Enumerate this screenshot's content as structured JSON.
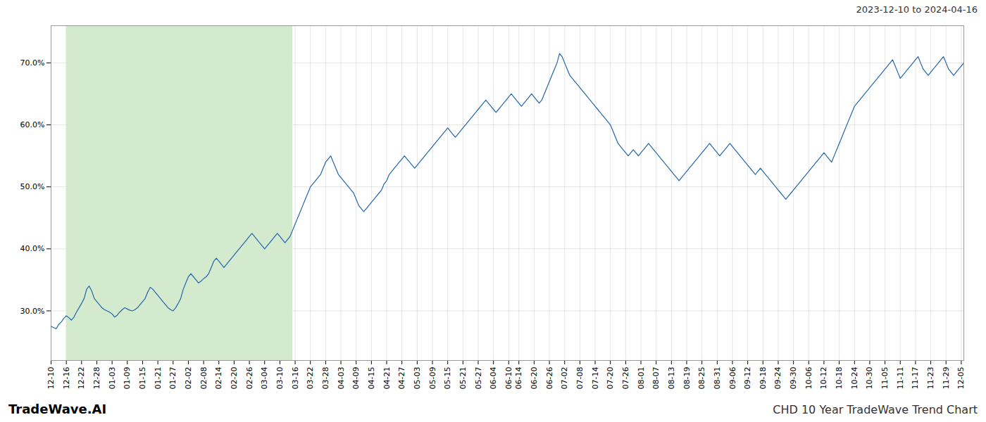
{
  "chart_data": {
    "type": "line",
    "title": "CHD 10 Year TradeWave Trend Chart",
    "subtitle": "2023-12-10 to 2024-04-16",
    "annotations": [
      "TradeWave.AI"
    ],
    "color": "#2266aa",
    "grid": true,
    "shaded_region": {
      "x": [
        6,
        95
      ],
      "color": "#d4eacf"
    },
    "xlim": [
      0,
      359
    ],
    "ylim": [
      22,
      76
    ],
    "yticks": [
      {
        "value": 30.0,
        "label": "30.0%"
      },
      {
        "value": 40.0,
        "label": "40.0%"
      },
      {
        "value": 50.0,
        "label": "50.0%"
      },
      {
        "value": 60.0,
        "label": "60.0%"
      },
      {
        "value": 70.0,
        "label": "70.0%"
      }
    ],
    "xticks": [
      {
        "value": 0,
        "label": "12-10"
      },
      {
        "value": 6,
        "label": "12-16"
      },
      {
        "value": 12,
        "label": "12-22"
      },
      {
        "value": 18,
        "label": "12-28"
      },
      {
        "value": 24,
        "label": "01-03"
      },
      {
        "value": 30,
        "label": "01-09"
      },
      {
        "value": 36,
        "label": "01-15"
      },
      {
        "value": 42,
        "label": "01-21"
      },
      {
        "value": 48,
        "label": "01-27"
      },
      {
        "value": 54,
        "label": "02-02"
      },
      {
        "value": 60,
        "label": "02-08"
      },
      {
        "value": 66,
        "label": "02-14"
      },
      {
        "value": 72,
        "label": "02-20"
      },
      {
        "value": 78,
        "label": "02-26"
      },
      {
        "value": 84,
        "label": "03-04"
      },
      {
        "value": 90,
        "label": "03-10"
      },
      {
        "value": 96,
        "label": "03-16"
      },
      {
        "value": 102,
        "label": "03-22"
      },
      {
        "value": 108,
        "label": "03-28"
      },
      {
        "value": 114,
        "label": "04-03"
      },
      {
        "value": 120,
        "label": "04-09"
      },
      {
        "value": 126,
        "label": "04-15"
      },
      {
        "value": 132,
        "label": "04-21"
      },
      {
        "value": 138,
        "label": "04-27"
      },
      {
        "value": 144,
        "label": "05-03"
      },
      {
        "value": 150,
        "label": "05-09"
      },
      {
        "value": 156,
        "label": "05-15"
      },
      {
        "value": 162,
        "label": "05-21"
      },
      {
        "value": 168,
        "label": "05-27"
      },
      {
        "value": 174,
        "label": "06-04"
      },
      {
        "value": 180,
        "label": "06-10"
      },
      {
        "value": 184,
        "label": "06-14"
      },
      {
        "value": 190,
        "label": "06-20"
      },
      {
        "value": 196,
        "label": "06-26"
      },
      {
        "value": 202,
        "label": "07-02"
      },
      {
        "value": 208,
        "label": "07-08"
      },
      {
        "value": 214,
        "label": "07-14"
      },
      {
        "value": 220,
        "label": "07-20"
      },
      {
        "value": 226,
        "label": "07-26"
      },
      {
        "value": 232,
        "label": "08-01"
      },
      {
        "value": 238,
        "label": "08-07"
      },
      {
        "value": 244,
        "label": "08-13"
      },
      {
        "value": 250,
        "label": "08-19"
      },
      {
        "value": 256,
        "label": "08-25"
      },
      {
        "value": 262,
        "label": "08-31"
      },
      {
        "value": 268,
        "label": "09-06"
      },
      {
        "value": 274,
        "label": "09-12"
      },
      {
        "value": 280,
        "label": "09-18"
      },
      {
        "value": 286,
        "label": "09-24"
      },
      {
        "value": 292,
        "label": "09-30"
      },
      {
        "value": 298,
        "label": "10-06"
      },
      {
        "value": 304,
        "label": "10-12"
      },
      {
        "value": 310,
        "label": "10-18"
      },
      {
        "value": 316,
        "label": "10-24"
      },
      {
        "value": 322,
        "label": "10-30"
      },
      {
        "value": 328,
        "label": "11-05"
      },
      {
        "value": 334,
        "label": "11-11"
      },
      {
        "value": 340,
        "label": "11-17"
      },
      {
        "value": 346,
        "label": "11-23"
      },
      {
        "value": 352,
        "label": "11-29"
      },
      {
        "value": 358,
        "label": "12-05"
      }
    ],
    "x": [
      0,
      1,
      2,
      3,
      4,
      5,
      6,
      7,
      8,
      9,
      10,
      11,
      12,
      13,
      14,
      15,
      16,
      17,
      18,
      19,
      20,
      21,
      22,
      23,
      24,
      25,
      26,
      27,
      28,
      29,
      30,
      31,
      32,
      33,
      34,
      35,
      36,
      37,
      38,
      39,
      40,
      41,
      42,
      43,
      44,
      45,
      46,
      47,
      48,
      49,
      50,
      51,
      52,
      53,
      54,
      55,
      56,
      57,
      58,
      59,
      60,
      61,
      62,
      63,
      64,
      65,
      66,
      67,
      68,
      69,
      70,
      71,
      72,
      73,
      74,
      75,
      76,
      77,
      78,
      79,
      80,
      81,
      82,
      83,
      84,
      85,
      86,
      87,
      88,
      89,
      90,
      91,
      92,
      93,
      94,
      95,
      96,
      97,
      98,
      99,
      100,
      101,
      102,
      103,
      104,
      105,
      106,
      107,
      108,
      109,
      110,
      111,
      112,
      113,
      114,
      115,
      116,
      117,
      118,
      119,
      120,
      121,
      122,
      123,
      124,
      125,
      126,
      127,
      128,
      129,
      130,
      131,
      132,
      133,
      134,
      135,
      136,
      137,
      138,
      139,
      140,
      141,
      142,
      143,
      144,
      145,
      146,
      147,
      148,
      149,
      150,
      151,
      152,
      153,
      154,
      155,
      156,
      157,
      158,
      159,
      160,
      161,
      162,
      163,
      164,
      165,
      166,
      167,
      168,
      169,
      170,
      171,
      172,
      173,
      174,
      175,
      176,
      177,
      178,
      179,
      180,
      181,
      182,
      183,
      184,
      185,
      186,
      187,
      188,
      189,
      190,
      191,
      192,
      193,
      194,
      195,
      196,
      197,
      198,
      199,
      200,
      201,
      202,
      203,
      204,
      205,
      206,
      207,
      208,
      209,
      210,
      211,
      212,
      213,
      214,
      215,
      216,
      217,
      218,
      219,
      220,
      221,
      222,
      223,
      224,
      225,
      226,
      227,
      228,
      229,
      230,
      231,
      232,
      233,
      234,
      235,
      236,
      237,
      238,
      239,
      240,
      241,
      242,
      243,
      244,
      245,
      246,
      247,
      248,
      249,
      250,
      251,
      252,
      253,
      254,
      255,
      256,
      257,
      258,
      259,
      260,
      261,
      262,
      263,
      264,
      265,
      266,
      267,
      268,
      269,
      270,
      271,
      272,
      273,
      274,
      275,
      276,
      277,
      278,
      279,
      280,
      281,
      282,
      283,
      284,
      285,
      286,
      287,
      288,
      289,
      290,
      291,
      292,
      293,
      294,
      295,
      296,
      297,
      298,
      299,
      300,
      301,
      302,
      303,
      304,
      305,
      306,
      307,
      308,
      309,
      310,
      311,
      312,
      313,
      314,
      315,
      316,
      317,
      318,
      319,
      320,
      321,
      322,
      323,
      324,
      325,
      326,
      327,
      328,
      329,
      330,
      331,
      332,
      333,
      334,
      335,
      336,
      337,
      338,
      339,
      340,
      341,
      342,
      343,
      344,
      345,
      346,
      347,
      348,
      349,
      350,
      351,
      352,
      353,
      354,
      355,
      356,
      357,
      358,
      359
    ],
    "values": [
      27.5,
      27.3,
      27.1,
      27.8,
      28.2,
      28.8,
      29.2,
      28.9,
      28.5,
      29.0,
      29.8,
      30.5,
      31.2,
      32.0,
      33.5,
      34.0,
      33.2,
      32.0,
      31.5,
      31.0,
      30.5,
      30.2,
      30.0,
      29.8,
      29.5,
      29.0,
      29.3,
      29.8,
      30.2,
      30.5,
      30.3,
      30.1,
      30.0,
      30.2,
      30.5,
      31.0,
      31.5,
      32.0,
      33.0,
      33.8,
      33.5,
      33.0,
      32.5,
      32.0,
      31.5,
      31.0,
      30.5,
      30.2,
      30.0,
      30.5,
      31.2,
      32.0,
      33.5,
      34.5,
      35.5,
      36.0,
      35.5,
      35.0,
      34.5,
      34.8,
      35.2,
      35.5,
      36.0,
      37.0,
      38.0,
      38.5,
      38.0,
      37.5,
      37.0,
      37.5,
      38.0,
      38.5,
      39.0,
      39.5,
      40.0,
      40.5,
      41.0,
      41.5,
      42.0,
      42.5,
      42.0,
      41.5,
      41.0,
      40.5,
      40.0,
      40.5,
      41.0,
      41.5,
      42.0,
      42.5,
      42.0,
      41.5,
      41.0,
      41.5,
      42.0,
      43.0,
      44.0,
      45.0,
      46.0,
      47.0,
      48.0,
      49.0,
      50.0,
      50.5,
      51.0,
      51.5,
      52.0,
      53.0,
      54.0,
      54.5,
      55.0,
      54.0,
      53.0,
      52.0,
      51.5,
      51.0,
      50.5,
      50.0,
      49.5,
      49.0,
      48.0,
      47.0,
      46.5,
      46.0,
      46.5,
      47.0,
      47.5,
      48.0,
      48.5,
      49.0,
      49.5,
      50.5,
      51.0,
      52.0,
      52.5,
      53.0,
      53.5,
      54.0,
      54.5,
      55.0,
      54.5,
      54.0,
      53.5,
      53.0,
      53.5,
      54.0,
      54.5,
      55.0,
      55.5,
      56.0,
      56.5,
      57.0,
      57.5,
      58.0,
      58.5,
      59.0,
      59.5,
      59.0,
      58.5,
      58.0,
      58.5,
      59.0,
      59.5,
      60.0,
      60.5,
      61.0,
      61.5,
      62.0,
      62.5,
      63.0,
      63.5,
      64.0,
      63.5,
      63.0,
      62.5,
      62.0,
      62.5,
      63.0,
      63.5,
      64.0,
      64.5,
      65.0,
      64.5,
      64.0,
      63.5,
      63.0,
      63.5,
      64.0,
      64.5,
      65.0,
      64.5,
      64.0,
      63.5,
      64.0,
      65.0,
      66.0,
      67.0,
      68.0,
      69.0,
      70.0,
      71.5,
      71.0,
      70.0,
      69.0,
      68.0,
      67.5,
      67.0,
      66.5,
      66.0,
      65.5,
      65.0,
      64.5,
      64.0,
      63.5,
      63.0,
      62.5,
      62.0,
      61.5,
      61.0,
      60.5,
      60.0,
      59.0,
      58.0,
      57.0,
      56.5,
      56.0,
      55.5,
      55.0,
      55.5,
      56.0,
      55.5,
      55.0,
      55.5,
      56.0,
      56.5,
      57.0,
      56.5,
      56.0,
      55.5,
      55.0,
      54.5,
      54.0,
      53.5,
      53.0,
      52.5,
      52.0,
      51.5,
      51.0,
      51.5,
      52.0,
      52.5,
      53.0,
      53.5,
      54.0,
      54.5,
      55.0,
      55.5,
      56.0,
      56.5,
      57.0,
      56.5,
      56.0,
      55.5,
      55.0,
      55.5,
      56.0,
      56.5,
      57.0,
      56.5,
      56.0,
      55.5,
      55.0,
      54.5,
      54.0,
      53.5,
      53.0,
      52.5,
      52.0,
      52.5,
      53.0,
      52.5,
      52.0,
      51.5,
      51.0,
      50.5,
      50.0,
      49.5,
      49.0,
      48.5,
      48.0,
      48.5,
      49.0,
      49.5,
      50.0,
      50.5,
      51.0,
      51.5,
      52.0,
      52.5,
      53.0,
      53.5,
      54.0,
      54.5,
      55.0,
      55.5,
      55.0,
      54.5,
      54.0,
      55.0,
      56.0,
      57.0,
      58.0,
      59.0,
      60.0,
      61.0,
      62.0,
      63.0,
      63.5,
      64.0,
      64.5,
      65.0,
      65.5,
      66.0,
      66.5,
      67.0,
      67.5,
      68.0,
      68.5,
      69.0,
      69.5,
      70.0,
      70.5,
      69.5,
      68.5,
      67.5,
      68.0,
      68.5,
      69.0,
      69.5,
      70.0,
      70.5,
      71.0,
      70.0,
      69.0,
      68.5,
      68.0,
      68.5,
      69.0,
      69.5,
      70.0,
      70.5,
      71.0,
      70.0,
      69.0,
      68.5,
      68.0,
      68.5,
      69.0,
      69.5,
      70.0
    ]
  }
}
